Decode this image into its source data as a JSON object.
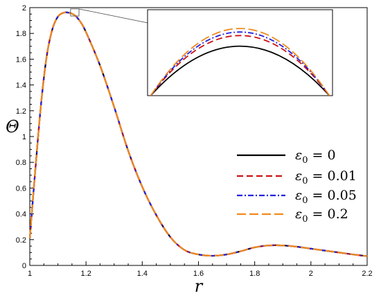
{
  "chart_data": {
    "type": "line",
    "xlabel": "r",
    "ylabel": "Θ",
    "xlim": [
      1,
      2.2
    ],
    "ylim": [
      0,
      2
    ],
    "x_ticks": [
      "1",
      "1.2",
      "1.4",
      "1.6",
      "1.8",
      "2",
      "2.2"
    ],
    "y_ticks": [
      "0",
      "0.2",
      "0.4",
      "0.6",
      "0.8",
      "1",
      "1.2",
      "1.4",
      "1.6",
      "1.8",
      "2"
    ],
    "legend_position": "right",
    "grid": false,
    "x": [
      1.0,
      1.02,
      1.04,
      1.06,
      1.08,
      1.1,
      1.12,
      1.14,
      1.16,
      1.18,
      1.2,
      1.25,
      1.3,
      1.35,
      1.4,
      1.45,
      1.5,
      1.55,
      1.6,
      1.65,
      1.7,
      1.75,
      1.8,
      1.85,
      1.9,
      1.95,
      2.0,
      2.05,
      2.1,
      2.15,
      2.2
    ],
    "series": [
      {
        "name": "ε₀ = 0",
        "label_main": "ε",
        "label_sub": "0",
        "label_rest": " = 0",
        "color": "#000000",
        "dash": "",
        "values": [
          0.21,
          0.75,
          1.25,
          1.62,
          1.83,
          1.93,
          1.96,
          1.96,
          1.94,
          1.89,
          1.81,
          1.55,
          1.23,
          0.89,
          0.61,
          0.39,
          0.22,
          0.12,
          0.085,
          0.075,
          0.085,
          0.11,
          0.14,
          0.155,
          0.155,
          0.145,
          0.13,
          0.115,
          0.1,
          0.085,
          0.072
        ]
      },
      {
        "name": "ε₀ = 0.01",
        "label_main": "ε",
        "label_sub": "0",
        "label_rest": " = 0.01",
        "color": "#cc1111",
        "dash": "9,5",
        "values": [
          0.21,
          0.75,
          1.25,
          1.62,
          1.83,
          1.93,
          1.96,
          1.96,
          1.94,
          1.89,
          1.81,
          1.55,
          1.23,
          0.89,
          0.61,
          0.39,
          0.22,
          0.12,
          0.085,
          0.075,
          0.085,
          0.11,
          0.14,
          0.155,
          0.155,
          0.145,
          0.13,
          0.115,
          0.1,
          0.085,
          0.072
        ]
      },
      {
        "name": "ε₀ = 0.05",
        "label_main": "ε",
        "label_sub": "0",
        "label_rest": " = 0.05",
        "color": "#2222dd",
        "dash": "8,3,2,3",
        "values": [
          0.21,
          0.75,
          1.25,
          1.62,
          1.83,
          1.93,
          1.96,
          1.96,
          1.94,
          1.89,
          1.81,
          1.55,
          1.23,
          0.89,
          0.61,
          0.39,
          0.22,
          0.12,
          0.085,
          0.075,
          0.085,
          0.11,
          0.14,
          0.155,
          0.155,
          0.145,
          0.13,
          0.115,
          0.1,
          0.085,
          0.072
        ]
      },
      {
        "name": "ε₀ = 0.2",
        "label_main": "ε",
        "label_sub": "0",
        "label_rest": " = 0.2",
        "color": "#f08a1c",
        "dash": "13,5",
        "values": [
          0.21,
          0.75,
          1.25,
          1.62,
          1.83,
          1.93,
          1.96,
          1.96,
          1.94,
          1.89,
          1.81,
          1.55,
          1.23,
          0.89,
          0.61,
          0.39,
          0.22,
          0.12,
          0.085,
          0.075,
          0.085,
          0.11,
          0.14,
          0.155,
          0.155,
          0.145,
          0.13,
          0.115,
          0.1,
          0.085,
          0.072
        ]
      }
    ],
    "inset": {
      "xlim": [
        1.145,
        1.175
      ],
      "peaks": [
        1.958,
        1.964,
        1.966,
        1.968
      ]
    }
  }
}
